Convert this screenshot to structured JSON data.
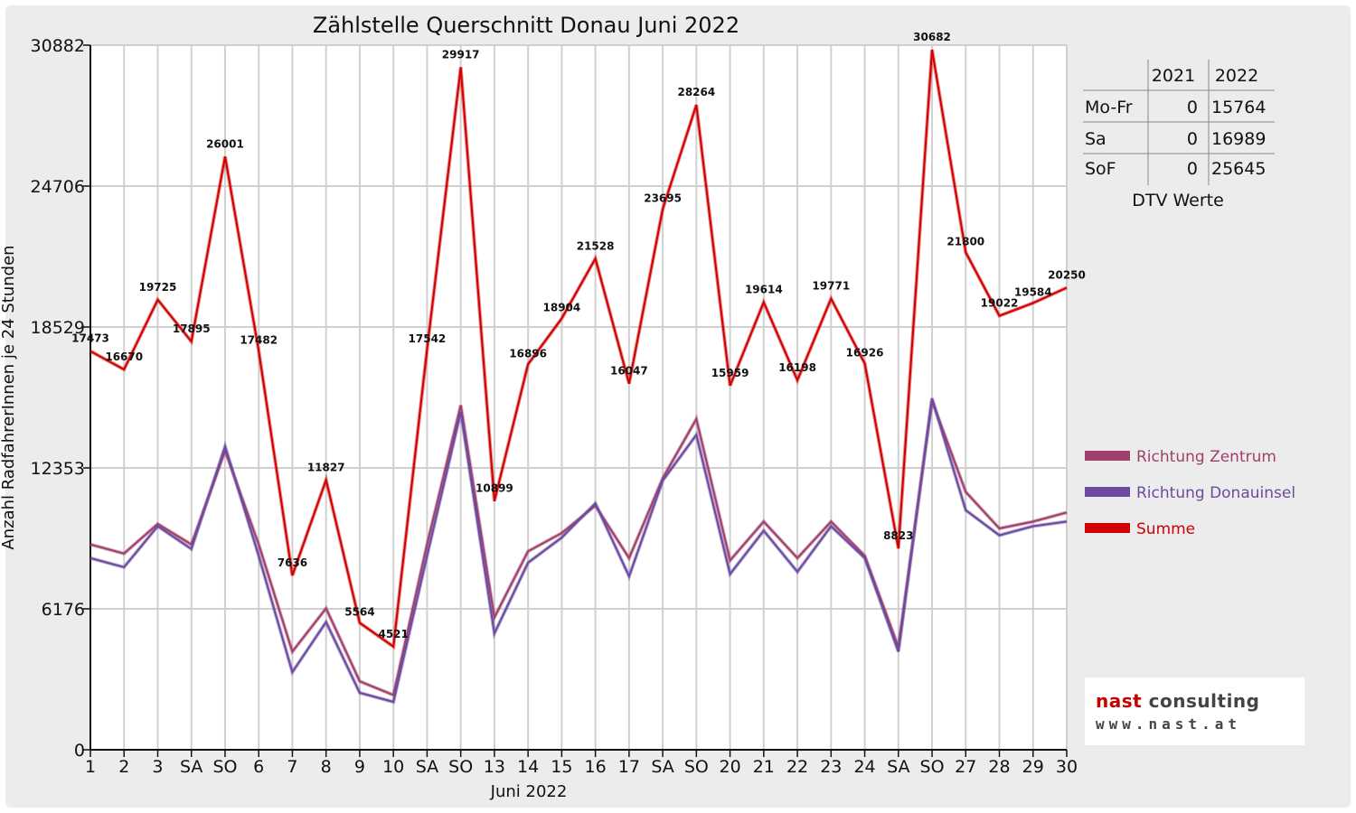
{
  "chart_data": {
    "type": "line",
    "title": "Zählstelle Querschnitt Donau Juni 2022",
    "xlabel": "Juni 2022",
    "ylabel": "Anzahl RadfahrerInnen je 24 Stunden",
    "ylim": [
      0,
      30882
    ],
    "yticks": [
      "0",
      "6176",
      "12353",
      "18529",
      "24706",
      "30882"
    ],
    "categories": [
      "1",
      "2",
      "3",
      "SA",
      "SO",
      "6",
      "7",
      "8",
      "9",
      "10",
      "SA",
      "SO",
      "13",
      "14",
      "15",
      "16",
      "17",
      "SA",
      "SO",
      "20",
      "21",
      "22",
      "23",
      "24",
      "SA",
      "SO",
      "27",
      "28",
      "29",
      "30"
    ],
    "category_colors": [
      "#111",
      "#111",
      "#111",
      "#111",
      "#e00000",
      "#e00000",
      "#111",
      "#111",
      "#111",
      "#111",
      "#111",
      "#e00000",
      "#111",
      "#111",
      "#111",
      "#e00000",
      "#111",
      "#111",
      "#e00000",
      "#111",
      "#111",
      "#111",
      "#111",
      "#111",
      "#111",
      "#e00000",
      "#111",
      "#111",
      "#111",
      "#111"
    ],
    "grid": true,
    "legend_position": "right",
    "series": [
      {
        "name": "Richtung Zentrum",
        "color": "#a0406a",
        "values": [
          9000,
          8600,
          9900,
          9000,
          13100,
          9000,
          4300,
          6200,
          3000,
          2400,
          9000,
          15100,
          5800,
          8700,
          9500,
          10700,
          8400,
          11900,
          14500,
          8300,
          10000,
          8400,
          10000,
          8500,
          4500,
          15300,
          11300,
          9700,
          10000,
          10400
        ]
      },
      {
        "name": "Richtung Donauinsel",
        "color": "#6b4aa0",
        "values": [
          8400,
          8000,
          9800,
          8800,
          13300,
          8500,
          3400,
          5600,
          2500,
          2100,
          8500,
          14800,
          5100,
          8200,
          9300,
          10800,
          7600,
          11800,
          13800,
          7700,
          9600,
          7800,
          9800,
          8400,
          4300,
          15400,
          10500,
          9400,
          9800,
          10000
        ]
      },
      {
        "name": "Summe",
        "color": "#d00000",
        "values": [
          17473,
          16670,
          19725,
          17895,
          26001,
          17482,
          7636,
          11827,
          5564,
          4521,
          17542,
          29917,
          10899,
          16896,
          18904,
          21528,
          16047,
          23695,
          28264,
          15959,
          19614,
          16198,
          19771,
          16926,
          8823,
          30682,
          21800,
          19022,
          19584,
          20250
        ]
      }
    ]
  },
  "dtv_table": {
    "headers": [
      "2021",
      "2022"
    ],
    "rows": [
      {
        "label": "Mo-Fr",
        "v2021": "0",
        "v2022": "15764"
      },
      {
        "label": "Sa",
        "v2021": "0",
        "v2022": "16989"
      },
      {
        "label": "SoF",
        "v2021": "0",
        "v2022": "25645"
      }
    ],
    "caption": "DTV Werte"
  },
  "logo": {
    "name_part1": "nast",
    "name_part2": "consulting",
    "url": "www.nast.at"
  }
}
